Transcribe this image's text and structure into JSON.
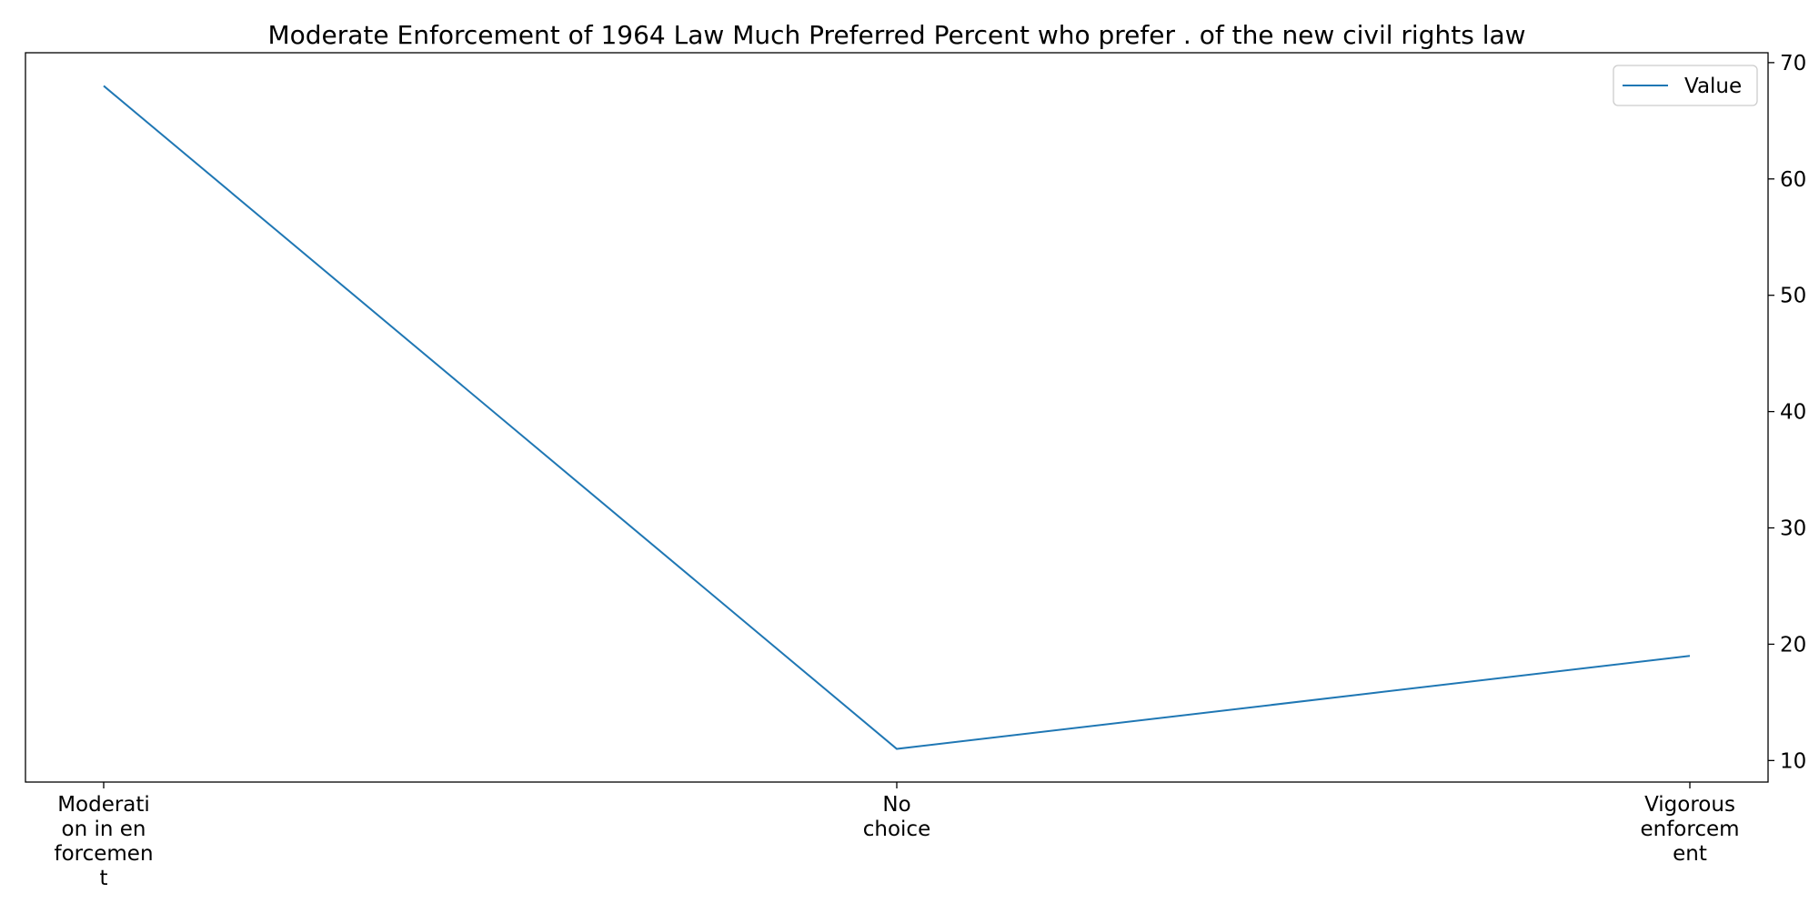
{
  "chart_data": {
    "type": "line",
    "title": "Moderate Enforcement of 1964 Law Much Preferred Percent who prefer . of the new civil rights law",
    "categories": [
      [
        "Moderati",
        "on in en",
        "forcemen",
        "t"
      ],
      [
        "No",
        "choice"
      ],
      [
        "Vigorous",
        "enforcem",
        "ent"
      ]
    ],
    "series": [
      {
        "name": "Value",
        "values": [
          68,
          11,
          19
        ],
        "color": "#1f77b4"
      }
    ],
    "ylim": [
      8.15,
      70.85
    ],
    "yticks": [
      10,
      20,
      30,
      40,
      50,
      60,
      70
    ],
    "y_axis_side": "right",
    "grid": false,
    "legend_position": "top-right"
  }
}
